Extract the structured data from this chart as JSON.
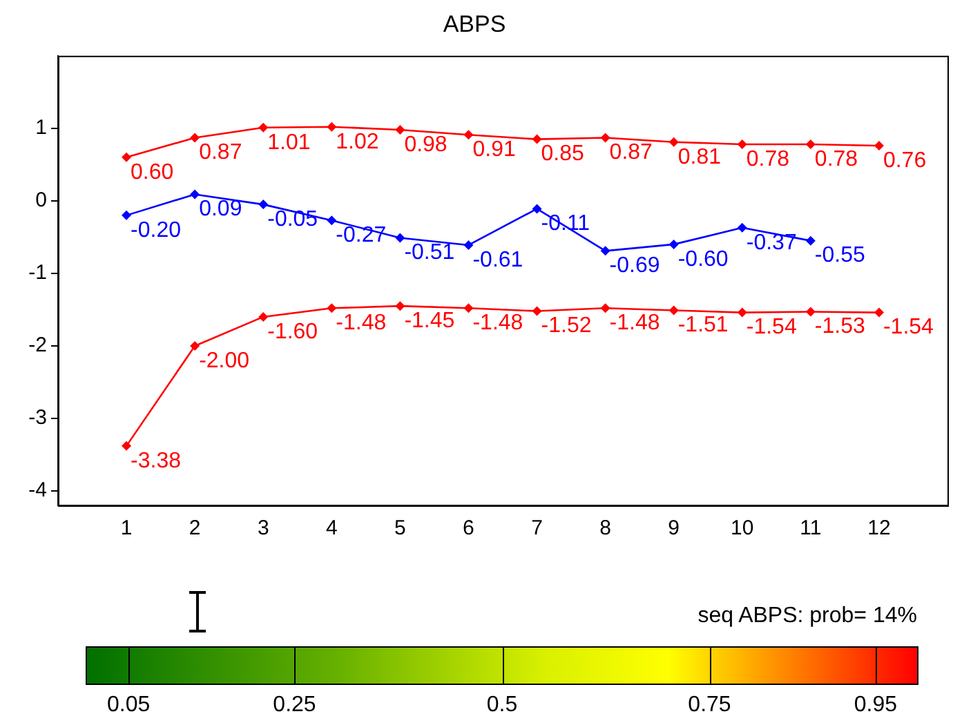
{
  "chart_data": {
    "type": "line",
    "title": "ABPS",
    "x": [
      1,
      2,
      3,
      4,
      5,
      6,
      7,
      8,
      9,
      10,
      11,
      12
    ],
    "xlim": [
      0,
      13
    ],
    "xticks": [
      1,
      2,
      3,
      4,
      5,
      6,
      7,
      8,
      9,
      10,
      11,
      12
    ],
    "ylim": [
      -4.2,
      2
    ],
    "yticks": [
      -4,
      -3,
      -2,
      -1,
      0,
      1
    ],
    "series": [
      {
        "color": "#ff0000",
        "values": [
          0.6,
          0.87,
          1.01,
          1.02,
          0.98,
          0.91,
          0.85,
          0.87,
          0.81,
          0.78,
          0.78,
          0.76
        ],
        "value_labels": [
          "0.60",
          "0.87",
          "1.01",
          "1.02",
          "0.98",
          "0.91",
          "0.85",
          "0.87",
          "0.81",
          "0.78",
          "0.78",
          "0.76"
        ]
      },
      {
        "color": "#0000ff",
        "values": [
          -0.2,
          0.09,
          -0.05,
          -0.27,
          -0.51,
          -0.61,
          -0.11,
          -0.69,
          -0.6,
          -0.37,
          -0.55,
          null
        ],
        "value_labels": [
          "-0.20",
          "0.09",
          "-0.05",
          "-0.27",
          "-0.51",
          "-0.61",
          "-0.11",
          "-0.69",
          "-0.60",
          "-0.37",
          "-0.55",
          null
        ]
      },
      {
        "color": "#ff0000",
        "values": [
          -3.38,
          -2.0,
          -1.6,
          -1.48,
          -1.45,
          -1.48,
          -1.52,
          -1.48,
          -1.51,
          -1.54,
          -1.53,
          -1.54
        ],
        "value_labels": [
          "-3.38",
          "-2.00",
          "-1.60",
          "-1.48",
          "-1.45",
          "-1.48",
          "-1.52",
          "-1.48",
          "-1.51",
          "-1.54",
          "-1.53",
          "-1.54"
        ]
      }
    ],
    "marker": "diamond",
    "grid": false,
    "legend": false,
    "clim": [
      0,
      1
    ],
    "cticks": [
      0.05,
      0.25,
      0.5,
      0.75,
      0.95
    ],
    "annotations": [
      "seq ABPS: prob= 14%"
    ]
  }
}
